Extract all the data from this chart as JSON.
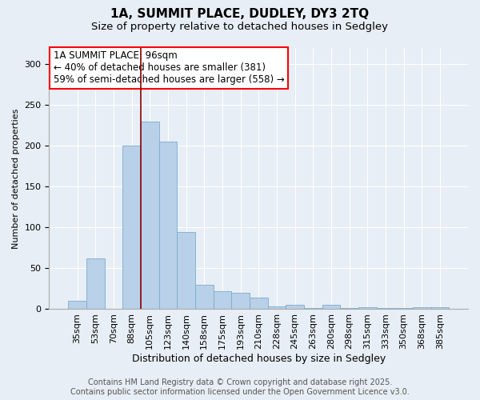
{
  "title": "1A, SUMMIT PLACE, DUDLEY, DY3 2TQ",
  "subtitle": "Size of property relative to detached houses in Sedgley",
  "xlabel": "Distribution of detached houses by size in Sedgley",
  "ylabel": "Number of detached properties",
  "categories": [
    "35sqm",
    "53sqm",
    "70sqm",
    "88sqm",
    "105sqm",
    "123sqm",
    "140sqm",
    "158sqm",
    "175sqm",
    "193sqm",
    "210sqm",
    "228sqm",
    "245sqm",
    "263sqm",
    "280sqm",
    "298sqm",
    "315sqm",
    "333sqm",
    "350sqm",
    "368sqm",
    "385sqm"
  ],
  "values": [
    10,
    62,
    0,
    200,
    230,
    205,
    95,
    30,
    22,
    20,
    14,
    3,
    5,
    1,
    5,
    1,
    2,
    1,
    1,
    2,
    2
  ],
  "bar_color": "#b8d0e8",
  "bar_edge_color": "#7aaed0",
  "red_line_bar_index": 4,
  "annotation_line1": "1A SUMMIT PLACE: 96sqm",
  "annotation_line2": "← 40% of detached houses are smaller (381)",
  "annotation_line3": "59% of semi-detached houses are larger (558) →",
  "footer_text": "Contains HM Land Registry data © Crown copyright and database right 2025.\nContains public sector information licensed under the Open Government Licence v3.0.",
  "ylim": [
    0,
    320
  ],
  "yticks": [
    0,
    50,
    100,
    150,
    200,
    250,
    300
  ],
  "bg_color": "#e8eef5",
  "plot_bg_color": "#e8eef5",
  "title_fontsize": 11,
  "subtitle_fontsize": 9.5,
  "annotation_fontsize": 8.5,
  "footer_fontsize": 7,
  "xlabel_fontsize": 9,
  "ylabel_fontsize": 8,
  "tick_fontsize": 8
}
